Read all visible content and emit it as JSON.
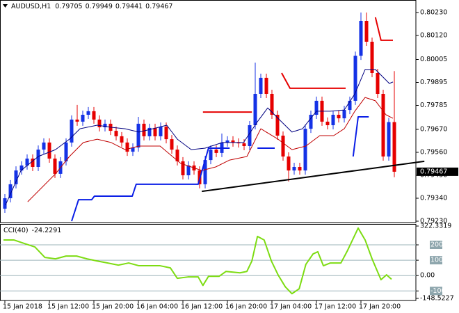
{
  "chart_data": [
    {
      "type": "candlestick",
      "title": "AUDUSD,H1",
      "open": [
        0.7929,
        0.7934,
        0.79407,
        0.79473,
        0.79497,
        0.7953,
        0.7949,
        0.79573,
        0.79607,
        0.7953,
        0.79457,
        0.79517,
        0.79607,
        0.79717,
        0.79707,
        0.7974,
        0.79757,
        0.79717,
        0.7968,
        0.79697,
        0.79663,
        0.79637,
        0.79607,
        0.79563,
        0.79583,
        0.79697,
        0.79637,
        0.79677,
        0.79637,
        0.79683,
        0.79623,
        0.79573,
        0.79517,
        0.7945,
        0.79497,
        0.79473,
        0.79407,
        0.79523,
        0.79573,
        0.79557,
        0.79607,
        0.79617,
        0.79607,
        0.79603,
        0.7959,
        0.7969,
        0.7984,
        0.79917,
        0.7984,
        0.7974,
        0.7964,
        0.7954,
        0.79473,
        0.7949,
        0.79473,
        0.79673,
        0.7974,
        0.79807,
        0.79707,
        0.7969,
        0.7974,
        0.79723,
        0.79763,
        0.79807,
        0.80023,
        0.8019,
        0.8009,
        0.7994,
        0.7984,
        0.7954,
        0.79705
      ],
      "high": [
        0.7936,
        0.79427,
        0.79493,
        0.79517,
        0.7955,
        0.7955,
        0.79593,
        0.79627,
        0.79627,
        0.7955,
        0.79537,
        0.79627,
        0.79737,
        0.79787,
        0.7976,
        0.79777,
        0.79777,
        0.79737,
        0.79717,
        0.79717,
        0.79683,
        0.79657,
        0.79627,
        0.79603,
        0.7973,
        0.79717,
        0.79697,
        0.79697,
        0.79703,
        0.79703,
        0.79643,
        0.79593,
        0.79537,
        0.79517,
        0.79517,
        0.79493,
        0.79543,
        0.79593,
        0.79593,
        0.7965,
        0.79637,
        0.79637,
        0.79627,
        0.79623,
        0.7971,
        0.7999,
        0.79937,
        0.79937,
        0.7986,
        0.7976,
        0.7966,
        0.7956,
        0.7951,
        0.7951,
        0.79693,
        0.7976,
        0.79827,
        0.79827,
        0.79727,
        0.7976,
        0.7976,
        0.79783,
        0.79827,
        0.80043,
        0.8023,
        0.8023,
        0.8011,
        0.7996,
        0.7986,
        0.79725,
        0.79949
      ],
      "low": [
        0.7927,
        0.7932,
        0.79387,
        0.79453,
        0.79477,
        0.7947,
        0.7947,
        0.79553,
        0.7951,
        0.79437,
        0.79437,
        0.79497,
        0.79587,
        0.79687,
        0.79687,
        0.7972,
        0.79697,
        0.7966,
        0.7966,
        0.79643,
        0.79617,
        0.79587,
        0.79543,
        0.79543,
        0.79563,
        0.79617,
        0.79617,
        0.79617,
        0.79617,
        0.79603,
        0.79553,
        0.79497,
        0.7943,
        0.7943,
        0.79453,
        0.79387,
        0.79387,
        0.79503,
        0.79537,
        0.79537,
        0.79587,
        0.79587,
        0.79583,
        0.7957,
        0.7957,
        0.7967,
        0.7982,
        0.7982,
        0.7972,
        0.7962,
        0.7952,
        0.7942,
        0.79453,
        0.79453,
        0.79453,
        0.79653,
        0.7972,
        0.79687,
        0.7967,
        0.7967,
        0.79703,
        0.79703,
        0.79743,
        0.79787,
        0.80003,
        0.8007,
        0.7992,
        0.7982,
        0.7952,
        0.7952,
        0.79441
      ],
      "close": [
        0.7934,
        0.79407,
        0.79473,
        0.79497,
        0.7953,
        0.7949,
        0.79573,
        0.79607,
        0.7953,
        0.79457,
        0.79517,
        0.79607,
        0.79717,
        0.79707,
        0.7974,
        0.79757,
        0.79717,
        0.7968,
        0.79697,
        0.79663,
        0.79637,
        0.79607,
        0.79563,
        0.79583,
        0.79697,
        0.79637,
        0.79677,
        0.79637,
        0.79683,
        0.79623,
        0.79573,
        0.79517,
        0.7945,
        0.79497,
        0.79473,
        0.79407,
        0.79523,
        0.79573,
        0.79557,
        0.79607,
        0.79617,
        0.79607,
        0.79603,
        0.7959,
        0.7969,
        0.7984,
        0.79917,
        0.7984,
        0.7974,
        0.7964,
        0.7954,
        0.79473,
        0.7949,
        0.79473,
        0.79673,
        0.7974,
        0.79807,
        0.79707,
        0.7969,
        0.7974,
        0.79723,
        0.79763,
        0.79807,
        0.80023,
        0.8019,
        0.8009,
        0.7994,
        0.7984,
        0.7954,
        0.79705,
        0.79467
      ],
      "up_color": "#1432e6",
      "down_color": "#e60000",
      "ylim": [
        0.7923,
        0.8023
      ],
      "yticks": [
        {
          "value": 0.8023,
          "label": "0.80230"
        },
        {
          "value": 0.8012,
          "label": "0.80120"
        },
        0.80005,
        0.79895,
        0.79785,
        {
          "value": 0.7967,
          "label": "0.79670"
        },
        {
          "value": 0.7956,
          "label": "0.79560"
        },
        {
          "value": 0.7945,
          "label": "0.79450"
        },
        {
          "value": 0.7934,
          "label": "0.79340"
        },
        {
          "value": 0.7923,
          "label": "0.79230"
        }
      ],
      "xticks": [
        {
          "value": 0,
          "label": "15 Jan 2018"
        },
        {
          "value": 8,
          "label": "15 Jan 12:00"
        },
        {
          "value": 16,
          "label": "15 Jan 20:00"
        },
        {
          "value": 24,
          "label": "16 Jan 04:00"
        },
        {
          "value": 32,
          "label": "16 Jan 12:00"
        },
        {
          "value": 40,
          "label": "16 Jan 20:00"
        },
        {
          "value": 48,
          "label": "17 Jan 04:00"
        },
        {
          "value": 56,
          "label": "17 Jan 12:00"
        },
        {
          "value": 64,
          "label": "17 Jan 20:00"
        }
      ],
      "overlays": [
        {
          "color": "#000080",
          "width": 1,
          "x": [
            0.1,
            2.9,
            6,
            9.1,
            11.6,
            13.5,
            16.6,
            19.1,
            21.6,
            24.1,
            26.6,
            29.1,
            31,
            33.5,
            36,
            39.1,
            42.9,
            45.4,
            47.25,
            49.1,
            51.6,
            53.5,
            56,
            58.5,
            61,
            62.9,
            64.75,
            66.6,
            69.1,
            69.75
          ],
          "values": [
            0.79307,
            0.79473,
            0.7954,
            0.79573,
            0.79623,
            0.79673,
            0.7969,
            0.7968,
            0.79673,
            0.79657,
            0.79673,
            0.7969,
            0.79623,
            0.79573,
            0.7958,
            0.79607,
            0.79607,
            0.79707,
            0.79773,
            0.79723,
            0.79657,
            0.79673,
            0.79757,
            0.79757,
            0.79763,
            0.7984,
            0.79957,
            0.79957,
            0.7989,
            0.79897
          ]
        },
        {
          "color": "#c00000",
          "width": 1,
          "x": [
            4.1,
            9.1,
            11.6,
            14.1,
            16.6,
            19.1,
            21.6,
            24.1,
            27.9,
            31.6,
            35.4,
            37.9,
            40.4,
            43.5,
            46,
            49.1,
            51.6,
            54.1,
            56.6,
            59.1,
            61,
            62.9,
            64.75,
            66.6,
            68.5,
            69.75
          ],
          "values": [
            0.79323,
            0.79457,
            0.7954,
            0.79607,
            0.79623,
            0.79607,
            0.79573,
            0.7959,
            0.7959,
            0.79507,
            0.79473,
            0.7949,
            0.79523,
            0.7954,
            0.79673,
            0.79623,
            0.79573,
            0.7959,
            0.7964,
            0.7964,
            0.79673,
            0.79757,
            0.79823,
            0.79807,
            0.7974,
            0.79723
          ]
        },
        {
          "color": "#0a1ee6",
          "width": 2,
          "x": [
            12,
            13.25,
            15.6,
            16.1,
            22.9,
            23.6,
            34.75,
            36.6,
            40.4,
            40.4,
            45.4,
            48.5,
            48.5,
            62.6,
            63.5,
            65.4
          ],
          "values": [
            0.7923,
            0.79333,
            0.79333,
            0.7935,
            0.7935,
            0.79407,
            0.79407,
            0.7958,
            0.7958,
            null,
            0.7958,
            0.7958,
            null,
            0.7954,
            0.7973,
            0.7973
          ]
        },
        {
          "color": "#e60000",
          "width": 2,
          "x": [
            35.6,
            44.4,
            44.4,
            49.75,
            51.25,
            61.25,
            61.25,
            66.6,
            67.6,
            69.75
          ],
          "values": [
            0.79753,
            0.79753,
            null,
            0.7994,
            0.79867,
            0.79867,
            null,
            0.80207,
            0.80097,
            0.80097
          ]
        },
        {
          "color": "#000000",
          "width": 2,
          "x": [
            35.4,
            75.4
          ],
          "values": [
            0.79373,
            0.79517
          ]
        }
      ]
    },
    {
      "type": "line",
      "title": "CCI(40)",
      "color": "#7ddc12",
      "x": [
        -0.25,
        1.6,
        3.5,
        5.4,
        7.2,
        9.1,
        11,
        12.9,
        14.75,
        16.6,
        18.5,
        20.4,
        22.25,
        24.1,
        26,
        27.9,
        29.75,
        31,
        32.9,
        34.75,
        35.6,
        36.6,
        38.5,
        39.75,
        42.25,
        43.5,
        44.4,
        45.4,
        46.6,
        47.9,
        49.1,
        50.4,
        51.6,
        52.9,
        54.1,
        55.4,
        56.25,
        57.25,
        58.5,
        60.4,
        61.6,
        63.5,
        64.75,
        66,
        67.6,
        68.6,
        69.5
      ],
      "values": [
        232,
        232,
        209,
        186,
        118,
        109,
        127,
        127,
        109,
        95,
        82,
        68,
        82,
        64,
        64,
        64,
        50,
        -18,
        -9,
        -9,
        -64,
        -5,
        -5,
        27,
        18,
        27,
        95,
        255,
        232,
        95,
        5,
        -73,
        -118,
        -86,
        73,
        141,
        155,
        64,
        82,
        82,
        164,
        309,
        232,
        109,
        -27,
        5,
        -24.2291
      ],
      "ylim": [
        -148.5227,
        322.3319
      ],
      "yticks": [
        322.3319,
        200,
        100,
        {
          "value": 0,
          "label": "0.00"
        },
        -100,
        -148.5227
      ]
    }
  ]
}
